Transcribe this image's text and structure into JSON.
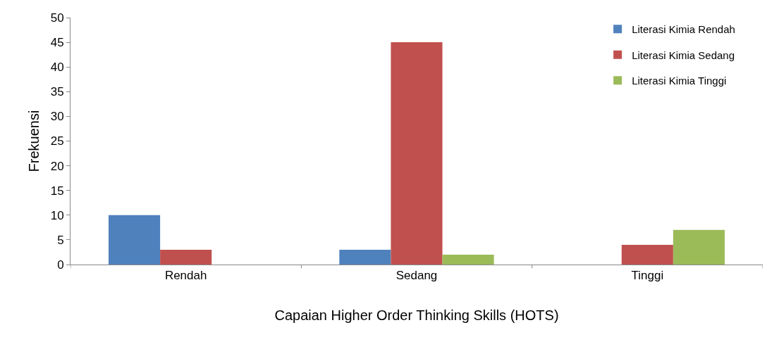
{
  "chart_data": {
    "type": "bar",
    "xlabel": "Capaian Higher Order Thinking Skills (HOTS)",
    "ylabel": "Frekuensi",
    "categories": [
      "Rendah",
      "Sedang",
      "Tinggi"
    ],
    "series": [
      {
        "name": "Literasi Kimia Rendah",
        "color": "#4f81bd",
        "values": [
          10,
          3,
          0
        ]
      },
      {
        "name": "Literasi Kimia Sedang",
        "color": "#c0504d",
        "values": [
          3,
          45,
          4
        ]
      },
      {
        "name": "Literasi Kimia Tinggi",
        "color": "#9bbb59",
        "values": [
          0,
          2,
          7
        ]
      }
    ],
    "ylim": [
      0,
      50
    ],
    "yticks": [
      0,
      5,
      10,
      15,
      20,
      25,
      30,
      35,
      40,
      45,
      50
    ],
    "grid": false,
    "legend": "top right"
  }
}
